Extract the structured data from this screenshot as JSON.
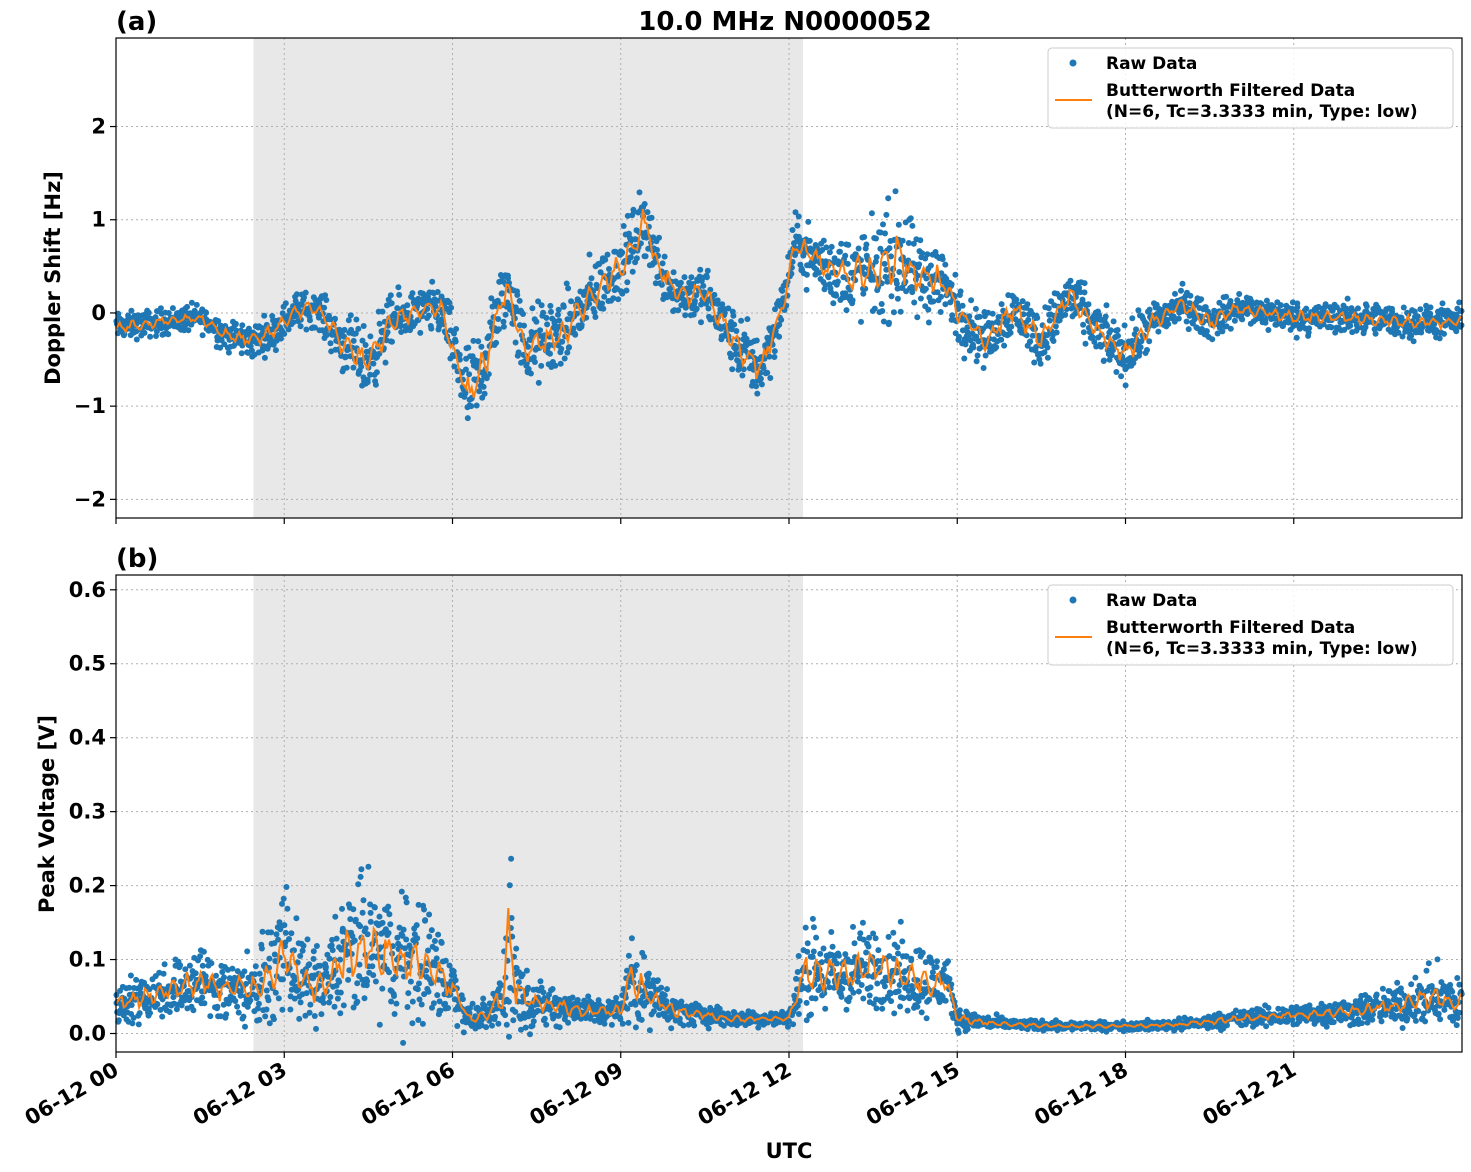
{
  "chart_data": [
    {
      "type": "scatter",
      "panel_label": "(a)",
      "title": "10.0 MHz N0000052",
      "xlabel": "",
      "ylabel": "Doppler Shift [Hz]",
      "xlim_hours": [
        0,
        24
      ],
      "ylim": [
        -2.2,
        2.95
      ],
      "yticks": [
        -2,
        -1,
        0,
        1,
        2
      ],
      "ytick_labels": [
        "−2",
        "−1",
        "0",
        "1",
        "2"
      ],
      "grid": true,
      "legend_placement": "top-right",
      "shaded_region_hours": [
        2.45,
        12.25
      ],
      "series": [
        {
          "name": "Raw Data",
          "kind": "points",
          "color": "#1f77b4",
          "x_hours": [
            0.0,
            0.5,
            1.0,
            1.5,
            2.0,
            2.45,
            2.8,
            3.2,
            3.6,
            4.0,
            4.5,
            4.9,
            5.3,
            5.8,
            6.0,
            6.3,
            6.6,
            6.85,
            7.0,
            7.3,
            7.6,
            8.0,
            8.5,
            9.0,
            9.45,
            9.6,
            10.0,
            10.5,
            11.0,
            11.5,
            11.9,
            12.1,
            12.5,
            13.0,
            13.5,
            14.0,
            14.25,
            14.5,
            14.8,
            15.0,
            15.5,
            16.0,
            16.5,
            17.0,
            17.5,
            18.0,
            18.5,
            19.0,
            19.5,
            20.0,
            21.0,
            22.0,
            23.0,
            24.0
          ],
          "center": [
            -0.15,
            -0.12,
            -0.08,
            -0.05,
            -0.25,
            -0.3,
            -0.2,
            0.02,
            0.05,
            -0.3,
            -0.55,
            -0.1,
            0.0,
            0.05,
            -0.35,
            -0.9,
            -0.5,
            0.1,
            0.25,
            -0.4,
            -0.3,
            -0.2,
            0.2,
            0.5,
            1.0,
            0.6,
            0.2,
            0.2,
            -0.3,
            -0.6,
            0.1,
            0.75,
            0.55,
            0.4,
            0.45,
            0.6,
            0.35,
            0.4,
            0.3,
            0.0,
            -0.3,
            0.05,
            -0.3,
            0.2,
            -0.2,
            -0.45,
            -0.1,
            0.1,
            -0.1,
            0.05,
            -0.05,
            -0.05,
            -0.1,
            -0.1
          ],
          "spread": [
            0.15,
            0.15,
            0.15,
            0.15,
            0.18,
            0.2,
            0.2,
            0.2,
            0.2,
            0.3,
            0.4,
            0.3,
            0.25,
            0.3,
            0.35,
            0.55,
            0.5,
            0.4,
            0.35,
            0.45,
            0.45,
            0.4,
            0.4,
            0.35,
            0.45,
            0.35,
            0.3,
            0.3,
            0.35,
            0.4,
            0.3,
            0.3,
            0.35,
            0.45,
            0.55,
            0.7,
            0.5,
            0.5,
            0.35,
            0.35,
            0.3,
            0.3,
            0.3,
            0.3,
            0.3,
            0.3,
            0.25,
            0.2,
            0.2,
            0.18,
            0.18,
            0.18,
            0.18,
            0.18
          ]
        },
        {
          "name": "Butterworth Filtered Data\n(N=6, Tc=3.3333 min, Type: low)",
          "name_line1": "Butterworth Filtered Data",
          "name_line2": "(N=6, Tc=3.3333 min, Type: low)",
          "kind": "line",
          "color": "#ff7f0e",
          "x_hours": [
            0.0,
            0.5,
            1.0,
            1.5,
            2.0,
            2.45,
            2.8,
            3.2,
            3.6,
            4.0,
            4.5,
            4.9,
            5.3,
            5.8,
            6.0,
            6.3,
            6.6,
            6.85,
            7.0,
            7.3,
            7.6,
            8.0,
            8.5,
            9.0,
            9.45,
            9.6,
            10.0,
            10.5,
            11.0,
            11.5,
            11.9,
            12.1,
            12.5,
            13.0,
            13.5,
            14.0,
            14.25,
            14.5,
            14.8,
            15.0,
            15.5,
            16.0,
            16.5,
            17.0,
            17.5,
            18.0,
            18.5,
            19.0,
            19.5,
            20.0,
            21.0,
            22.0,
            23.0,
            24.0
          ],
          "y": [
            -0.15,
            -0.12,
            -0.08,
            -0.05,
            -0.25,
            -0.3,
            -0.2,
            0.02,
            0.05,
            -0.3,
            -0.55,
            -0.1,
            0.0,
            0.05,
            -0.35,
            -0.9,
            -0.5,
            0.1,
            0.25,
            -0.4,
            -0.3,
            -0.2,
            0.2,
            0.5,
            1.0,
            0.6,
            0.2,
            0.2,
            -0.3,
            -0.6,
            0.1,
            0.75,
            0.55,
            0.4,
            0.45,
            0.6,
            0.35,
            0.4,
            0.3,
            0.0,
            -0.3,
            0.05,
            -0.3,
            0.2,
            -0.2,
            -0.45,
            -0.1,
            0.1,
            -0.1,
            0.05,
            -0.05,
            -0.05,
            -0.1,
            -0.1
          ]
        }
      ]
    },
    {
      "type": "scatter",
      "panel_label": "(b)",
      "title": "",
      "xlabel": "UTC",
      "ylabel": "Peak Voltage [V]",
      "xlim_hours": [
        0,
        24
      ],
      "ylim": [
        -0.025,
        0.62
      ],
      "yticks": [
        0.0,
        0.1,
        0.2,
        0.3,
        0.4,
        0.5,
        0.6
      ],
      "ytick_labels": [
        "0.0",
        "0.1",
        "0.2",
        "0.3",
        "0.4",
        "0.5",
        "0.6"
      ],
      "grid": true,
      "legend_placement": "top-right",
      "shaded_region_hours": [
        2.45,
        12.25
      ],
      "series": [
        {
          "name": "Raw Data",
          "kind": "points",
          "color": "#1f77b4",
          "x_hours": [
            0.0,
            0.5,
            1.0,
            1.5,
            2.0,
            2.45,
            2.8,
            3.0,
            3.3,
            3.7,
            4.0,
            4.5,
            5.0,
            5.5,
            6.0,
            6.3,
            6.6,
            6.9,
            7.0,
            7.2,
            7.5,
            8.0,
            8.5,
            9.0,
            9.2,
            9.5,
            10.0,
            10.5,
            11.0,
            11.5,
            12.0,
            12.3,
            12.6,
            13.0,
            13.5,
            14.0,
            14.5,
            14.8,
            15.0,
            15.5,
            16.0,
            17.0,
            18.0,
            19.0,
            20.0,
            21.0,
            22.0,
            23.0,
            23.5,
            24.0
          ],
          "center": [
            0.04,
            0.05,
            0.06,
            0.07,
            0.06,
            0.06,
            0.08,
            0.12,
            0.07,
            0.06,
            0.1,
            0.12,
            0.1,
            0.1,
            0.06,
            0.02,
            0.025,
            0.05,
            0.12,
            0.05,
            0.04,
            0.035,
            0.03,
            0.03,
            0.08,
            0.05,
            0.03,
            0.025,
            0.02,
            0.02,
            0.02,
            0.09,
            0.08,
            0.08,
            0.09,
            0.08,
            0.07,
            0.07,
            0.02,
            0.015,
            0.012,
            0.01,
            0.01,
            0.012,
            0.02,
            0.025,
            0.03,
            0.04,
            0.05,
            0.04
          ],
          "spread": [
            0.03,
            0.035,
            0.04,
            0.05,
            0.05,
            0.05,
            0.06,
            0.09,
            0.06,
            0.05,
            0.09,
            0.1,
            0.09,
            0.09,
            0.05,
            0.015,
            0.02,
            0.05,
            0.15,
            0.05,
            0.03,
            0.025,
            0.02,
            0.02,
            0.07,
            0.04,
            0.02,
            0.015,
            0.012,
            0.01,
            0.01,
            0.07,
            0.06,
            0.06,
            0.06,
            0.06,
            0.05,
            0.04,
            0.015,
            0.01,
            0.008,
            0.006,
            0.006,
            0.008,
            0.012,
            0.015,
            0.02,
            0.03,
            0.04,
            0.04
          ]
        },
        {
          "name": "Butterworth Filtered Data\n(N=6, Tc=3.3333 min, Type: low)",
          "name_line1": "Butterworth Filtered Data",
          "name_line2": "(N=6, Tc=3.3333 min, Type: low)",
          "kind": "line",
          "color": "#ff7f0e",
          "x_hours": [
            0.0,
            0.5,
            1.0,
            1.5,
            2.0,
            2.45,
            2.8,
            3.0,
            3.3,
            3.7,
            4.0,
            4.5,
            5.0,
            5.5,
            6.0,
            6.3,
            6.6,
            6.9,
            7.0,
            7.2,
            7.5,
            8.0,
            8.5,
            9.0,
            9.2,
            9.5,
            10.0,
            10.5,
            11.0,
            11.5,
            12.0,
            12.3,
            12.6,
            13.0,
            13.5,
            14.0,
            14.5,
            14.8,
            15.0,
            15.5,
            16.0,
            17.0,
            18.0,
            19.0,
            20.0,
            21.0,
            22.0,
            23.0,
            23.5,
            24.0
          ],
          "y": [
            0.04,
            0.05,
            0.06,
            0.07,
            0.06,
            0.06,
            0.08,
            0.12,
            0.07,
            0.06,
            0.1,
            0.12,
            0.1,
            0.1,
            0.06,
            0.02,
            0.025,
            0.05,
            0.12,
            0.05,
            0.04,
            0.035,
            0.03,
            0.03,
            0.08,
            0.05,
            0.03,
            0.025,
            0.02,
            0.02,
            0.02,
            0.09,
            0.08,
            0.08,
            0.09,
            0.08,
            0.07,
            0.07,
            0.02,
            0.015,
            0.012,
            0.01,
            0.01,
            0.012,
            0.02,
            0.025,
            0.03,
            0.04,
            0.05,
            0.04
          ]
        }
      ]
    }
  ],
  "x_axis": {
    "label": "UTC",
    "tick_hours": [
      0,
      3,
      6,
      9,
      12,
      15,
      18,
      21
    ],
    "tick_labels": [
      "06-12 00",
      "06-12 03",
      "06-12 06",
      "06-12 09",
      "06-12 12",
      "06-12 15",
      "06-12 18",
      "06-12 21"
    ]
  },
  "colors": {
    "raw": "#1f77b4",
    "filtered": "#ff7f0e",
    "shade": "#e8e8e8"
  }
}
